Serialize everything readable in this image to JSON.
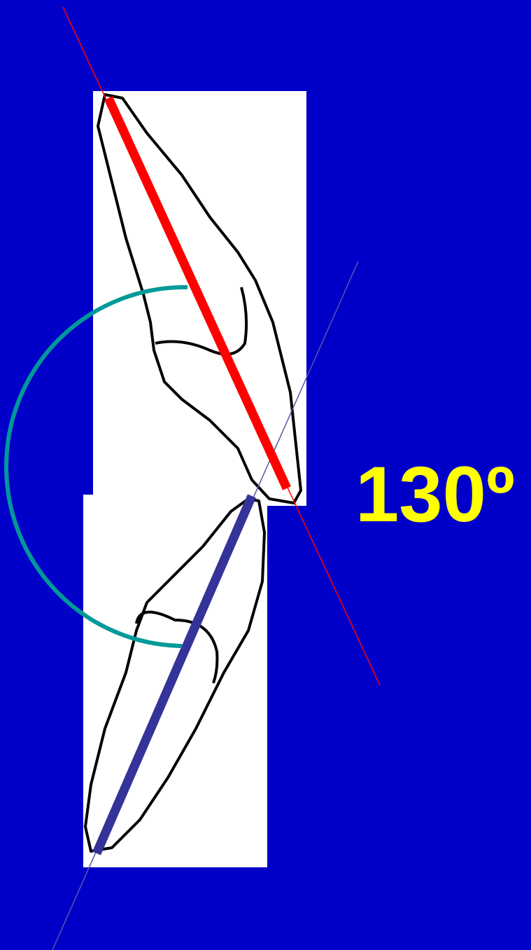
{
  "angle_label": "130º"
}
